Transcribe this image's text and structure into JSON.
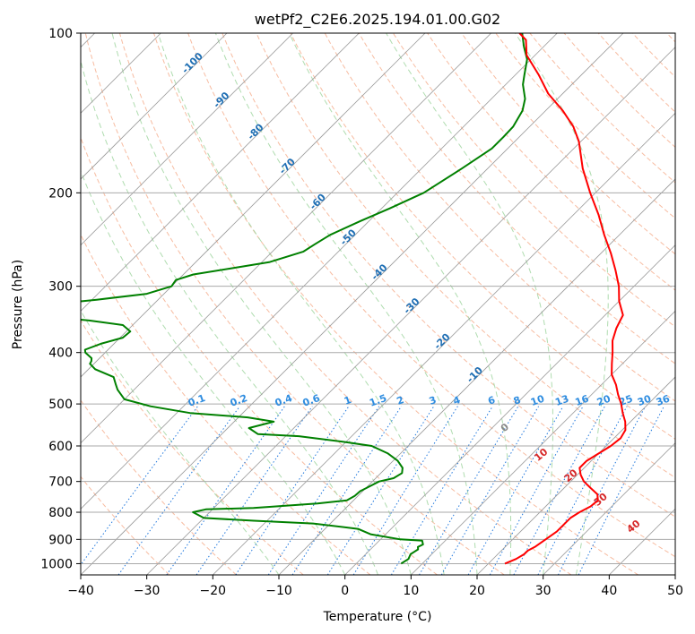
{
  "chart_data": {
    "type": "skew-t",
    "title": "wetPf2_C2E6.2025.194.01.00.G02",
    "xlabel": "Temperature (°C)",
    "ylabel": "Pressure (hPa)",
    "xlim": [
      -40,
      50
    ],
    "ylim": [
      1050,
      100
    ],
    "x_ticks": [
      -40,
      -30,
      -20,
      -10,
      0,
      10,
      20,
      30,
      40,
      50
    ],
    "y_ticks": [
      100,
      200,
      300,
      400,
      500,
      600,
      700,
      800,
      900,
      1000
    ],
    "grid": true,
    "temperature_profile": {
      "color": "#ff0000",
      "points": [
        [
          1000,
          22.5
        ],
        [
          980,
          23.5
        ],
        [
          960,
          24.0
        ],
        [
          945,
          24.0
        ],
        [
          930,
          24.5
        ],
        [
          900,
          25.0
        ],
        [
          870,
          25.5
        ],
        [
          840,
          25.5
        ],
        [
          820,
          25.5
        ],
        [
          800,
          26.0
        ],
        [
          780,
          26.8
        ],
        [
          760,
          27.0
        ],
        [
          740,
          26.0
        ],
        [
          720,
          24.0
        ],
        [
          700,
          22.0
        ],
        [
          680,
          20.5
        ],
        [
          660,
          19.3
        ],
        [
          640,
          19.3
        ],
        [
          620,
          20.0
        ],
        [
          600,
          20.7
        ],
        [
          580,
          21.0
        ],
        [
          560,
          20.5
        ],
        [
          540,
          19.2
        ],
        [
          520,
          17.5
        ],
        [
          500,
          15.9
        ],
        [
          480,
          14.0
        ],
        [
          460,
          12.2
        ],
        [
          440,
          10.0
        ],
        [
          420,
          8.4
        ],
        [
          400,
          6.8
        ],
        [
          380,
          5.0
        ],
        [
          360,
          3.7
        ],
        [
          350,
          3.2
        ],
        [
          340,
          2.7
        ],
        [
          320,
          0.0
        ],
        [
          300,
          -2.3
        ],
        [
          280,
          -5.2
        ],
        [
          260,
          -8.5
        ],
        [
          240,
          -12.3
        ],
        [
          220,
          -16.2
        ],
        [
          200,
          -20.8
        ],
        [
          180,
          -25.6
        ],
        [
          160,
          -30.3
        ],
        [
          150,
          -33.4
        ],
        [
          140,
          -37.4
        ],
        [
          130,
          -42.2
        ],
        [
          120,
          -46.4
        ],
        [
          110,
          -51.3
        ],
        [
          103,
          -53.7
        ],
        [
          100,
          -55.7
        ]
      ]
    },
    "dewpoint_profile": {
      "color": "#008000",
      "points": [
        [
          1000,
          6.8
        ],
        [
          980,
          7.2
        ],
        [
          960,
          6.8
        ],
        [
          950,
          7.0
        ],
        [
          940,
          7.2
        ],
        [
          930,
          6.8
        ],
        [
          920,
          7.2
        ],
        [
          905,
          6.5
        ],
        [
          900,
          3.0
        ],
        [
          880,
          -2.3
        ],
        [
          860,
          -5.0
        ],
        [
          840,
          -12.6
        ],
        [
          830,
          -22.0
        ],
        [
          820,
          -30.0
        ],
        [
          800,
          -32.5
        ],
        [
          790,
          -31.0
        ],
        [
          785,
          -24.0
        ],
        [
          770,
          -15.0
        ],
        [
          760,
          -11.0
        ],
        [
          745,
          -10.5
        ],
        [
          730,
          -10.4
        ],
        [
          720,
          -9.9
        ],
        [
          700,
          -9.0
        ],
        [
          690,
          -7.3
        ],
        [
          675,
          -6.8
        ],
        [
          660,
          -7.5
        ],
        [
          640,
          -9.3
        ],
        [
          620,
          -11.9
        ],
        [
          600,
          -15.5
        ],
        [
          590,
          -20.0
        ],
        [
          575,
          -28.0
        ],
        [
          570,
          -34.5
        ],
        [
          555,
          -36.8
        ],
        [
          540,
          -34.0
        ],
        [
          530,
          -38.6
        ],
        [
          520,
          -48.0
        ],
        [
          505,
          -55.0
        ],
        [
          490,
          -60.0
        ],
        [
          470,
          -62.5
        ],
        [
          460,
          -63.5
        ],
        [
          445,
          -65.0
        ],
        [
          430,
          -69.0
        ],
        [
          420,
          -70.6
        ],
        [
          415,
          -70.8
        ],
        [
          410,
          -71.2
        ],
        [
          400,
          -73.0
        ],
        [
          395,
          -73.5
        ],
        [
          385,
          -72.0
        ],
        [
          375,
          -69.6
        ],
        [
          365,
          -69.4
        ],
        [
          355,
          -71.5
        ],
        [
          348,
          -77.3
        ],
        [
          343,
          -83.5
        ],
        [
          338,
          -86.0
        ],
        [
          333,
          -88.3
        ],
        [
          325,
          -86.0
        ],
        [
          318,
          -79.3
        ],
        [
          310,
          -72.6
        ],
        [
          300,
          -70.0
        ],
        [
          292,
          -70.3
        ],
        [
          285,
          -68.5
        ],
        [
          278,
          -64.0
        ],
        [
          270,
          -58.8
        ],
        [
          258,
          -55.3
        ],
        [
          250,
          -54.7
        ],
        [
          240,
          -53.8
        ],
        [
          226,
          -51.3
        ],
        [
          214,
          -48.8
        ],
        [
          200,
          -46.0
        ],
        [
          180,
          -43.9
        ],
        [
          165,
          -42.4
        ],
        [
          157,
          -42.4
        ],
        [
          150,
          -42.5
        ],
        [
          140,
          -43.5
        ],
        [
          133,
          -44.9
        ],
        [
          125,
          -47.4
        ],
        [
          120,
          -48.6
        ],
        [
          112,
          -50.6
        ],
        [
          106,
          -53.0
        ],
        [
          100,
          -55.3
        ]
      ]
    },
    "isotherm_labels": [
      "-100",
      "-90",
      "-80",
      "-70",
      "-60",
      "-50",
      "-40",
      "-30",
      "-20",
      "-10"
    ],
    "mixing_ratio_labels": [
      "0.1",
      "0.2",
      "0.4",
      "0.6",
      "1",
      "1.5",
      "2",
      "3",
      "4",
      "6",
      "8",
      "10",
      "13",
      "16",
      "20",
      "25",
      "30",
      "36"
    ],
    "dry_adiabat_labels": [
      "0",
      "10",
      "20",
      "30",
      "40"
    ],
    "colors": {
      "temperature": "#ff0000",
      "dewpoint": "#008000",
      "isotherm": "#999999",
      "isobar": "#aaaaaa",
      "dry_adiabat": "#f4a582",
      "moist_adiabat": "#a6d8a6",
      "mixing_ratio": "#1f77dd",
      "isotherm_label": "#1f6fb4",
      "adiabat_label": "#d62728",
      "zero_label": "#888888",
      "faint_adiabat": "#d8c8a8"
    }
  }
}
